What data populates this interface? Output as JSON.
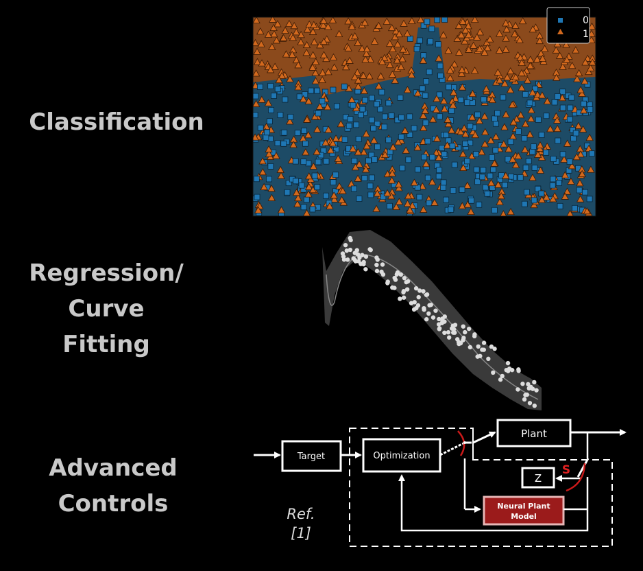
{
  "labels": {
    "classification": "Classification",
    "regression_line1": "Regression/",
    "regression_line2": "Curve",
    "regression_line3": "Fitting",
    "advanced_line1": "Advanced",
    "advanced_line2": "Controls"
  },
  "classification_panel": {
    "legend": [
      {
        "label": "0",
        "color": "#1f77b4",
        "marker": "square"
      },
      {
        "label": "1",
        "color": "#d2691e",
        "marker": "triangle"
      }
    ],
    "colors": {
      "region0": "#1d4b66",
      "region1": "#8b4a1c"
    }
  },
  "control_diagram": {
    "blocks": {
      "target": "Target",
      "optimization": "Optimization",
      "plant": "Plant",
      "z": "Z",
      "neural_plant_model_line1": "Neural Plant",
      "neural_plant_model_line2": "Model"
    },
    "switch_label": "S",
    "reference_line1": "Ref.",
    "reference_line2": "[1]"
  }
}
